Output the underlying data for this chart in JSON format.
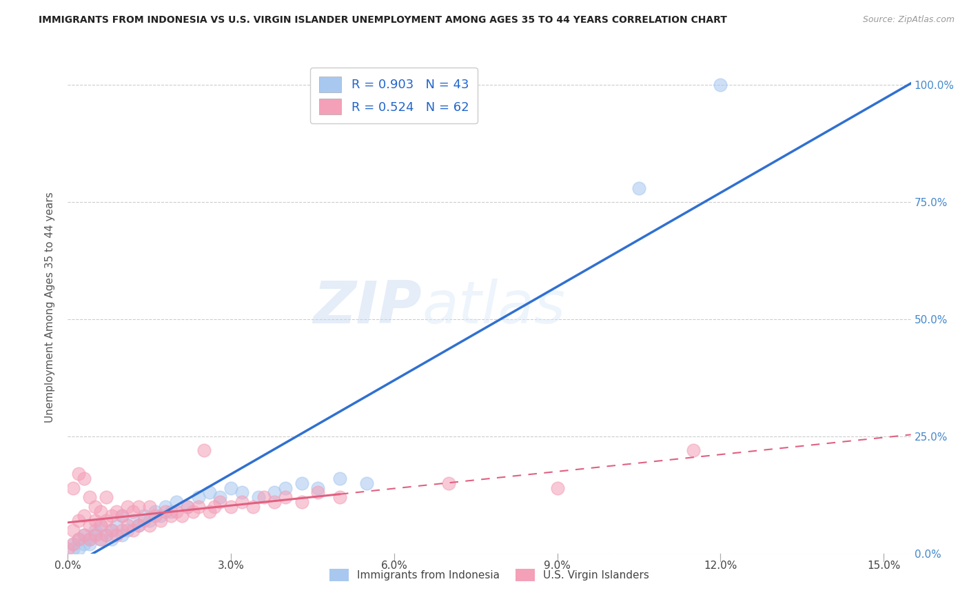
{
  "title": "IMMIGRANTS FROM INDONESIA VS U.S. VIRGIN ISLANDER UNEMPLOYMENT AMONG AGES 35 TO 44 YEARS CORRELATION CHART",
  "source": "Source: ZipAtlas.com",
  "xlabel_ticks": [
    "0.0%",
    "3.0%",
    "6.0%",
    "9.0%",
    "12.0%",
    "15.0%"
  ],
  "xlabel_vals": [
    0.0,
    0.03,
    0.06,
    0.09,
    0.12,
    0.15
  ],
  "ylabel": "Unemployment Among Ages 35 to 44 years",
  "ylim": [
    0.0,
    1.05
  ],
  "xlim": [
    0.0,
    0.155
  ],
  "ytick_vals": [
    0.0,
    0.25,
    0.5,
    0.75,
    1.0
  ],
  "ytick_labels": [
    "0.0%",
    "25.0%",
    "50.0%",
    "75.0%",
    "100.0%"
  ],
  "r_indonesia": 0.903,
  "n_indonesia": 43,
  "r_virgin": 0.524,
  "n_virgin": 62,
  "color_indonesia": "#a8c8f0",
  "color_virgin": "#f4a0b8",
  "line_color_indonesia": "#3070d0",
  "line_color_virgin": "#e06080",
  "watermark_zip": "ZIP",
  "watermark_atlas": "atlas",
  "legend_label_indonesia": "Immigrants from Indonesia",
  "legend_label_virgin": "U.S. Virgin Islanders",
  "indonesia_x": [
    0.001,
    0.001,
    0.002,
    0.002,
    0.003,
    0.003,
    0.004,
    0.004,
    0.005,
    0.005,
    0.006,
    0.006,
    0.007,
    0.008,
    0.008,
    0.009,
    0.01,
    0.01,
    0.011,
    0.012,
    0.013,
    0.014,
    0.015,
    0.016,
    0.017,
    0.018,
    0.019,
    0.02,
    0.022,
    0.024,
    0.026,
    0.028,
    0.03,
    0.032,
    0.035,
    0.038,
    0.04,
    0.043,
    0.046,
    0.05,
    0.055,
    0.105,
    0.12
  ],
  "indonesia_y": [
    0.01,
    0.02,
    0.01,
    0.03,
    0.02,
    0.04,
    0.03,
    0.02,
    0.04,
    0.05,
    0.03,
    0.06,
    0.04,
    0.03,
    0.05,
    0.06,
    0.04,
    0.08,
    0.05,
    0.07,
    0.06,
    0.08,
    0.07,
    0.09,
    0.08,
    0.1,
    0.09,
    0.11,
    0.1,
    0.12,
    0.13,
    0.12,
    0.14,
    0.13,
    0.12,
    0.13,
    0.14,
    0.15,
    0.14,
    0.16,
    0.15,
    0.78,
    1.0
  ],
  "virgin_x": [
    0.0,
    0.001,
    0.001,
    0.001,
    0.002,
    0.002,
    0.002,
    0.003,
    0.003,
    0.003,
    0.004,
    0.004,
    0.004,
    0.005,
    0.005,
    0.005,
    0.006,
    0.006,
    0.006,
    0.007,
    0.007,
    0.007,
    0.008,
    0.008,
    0.009,
    0.009,
    0.01,
    0.01,
    0.011,
    0.011,
    0.012,
    0.012,
    0.013,
    0.013,
    0.014,
    0.015,
    0.015,
    0.016,
    0.017,
    0.018,
    0.019,
    0.02,
    0.021,
    0.022,
    0.023,
    0.024,
    0.025,
    0.026,
    0.027,
    0.028,
    0.03,
    0.032,
    0.034,
    0.036,
    0.038,
    0.04,
    0.043,
    0.046,
    0.05,
    0.07,
    0.09,
    0.115
  ],
  "virgin_y": [
    0.01,
    0.02,
    0.05,
    0.14,
    0.03,
    0.07,
    0.17,
    0.04,
    0.08,
    0.16,
    0.03,
    0.06,
    0.12,
    0.04,
    0.07,
    0.1,
    0.03,
    0.06,
    0.09,
    0.04,
    0.07,
    0.12,
    0.05,
    0.08,
    0.04,
    0.09,
    0.05,
    0.08,
    0.06,
    0.1,
    0.05,
    0.09,
    0.06,
    0.1,
    0.07,
    0.06,
    0.1,
    0.08,
    0.07,
    0.09,
    0.08,
    0.09,
    0.08,
    0.1,
    0.09,
    0.1,
    0.22,
    0.09,
    0.1,
    0.11,
    0.1,
    0.11,
    0.1,
    0.12,
    0.11,
    0.12,
    0.11,
    0.13,
    0.12,
    0.15,
    0.14,
    0.22
  ]
}
